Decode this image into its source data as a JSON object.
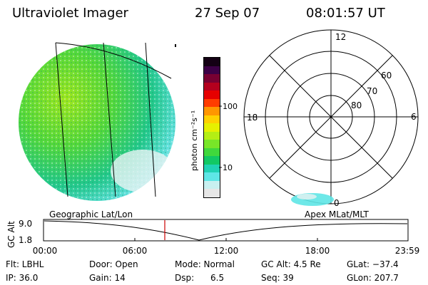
{
  "header": {
    "instrument": "Ultraviolet Imager",
    "date": "27 Sep 07",
    "time": "08:01:57 UT"
  },
  "colorbar": {
    "unit_label": "photon cm⁻²s⁻¹",
    "tick_100": "100",
    "tick_10": "10",
    "colors": [
      "#e6e6e6",
      "#c8f0f0",
      "#5ee6e6",
      "#20d2b4",
      "#12c864",
      "#40d83c",
      "#78e628",
      "#b4ee14",
      "#e6f000",
      "#ffd000",
      "#ff9600",
      "#ff3c00",
      "#e60000",
      "#b4001e",
      "#780032",
      "#3c0046",
      "#140014"
    ]
  },
  "polar_plot": {
    "mlt_12": "12",
    "mlt_18": "18",
    "mlt_6": "6",
    "mlt_0": "0",
    "lat_60": "60",
    "lat_70": "70",
    "lat_80": "80"
  },
  "orbit_panel": {
    "left_label": "Geographic Lat/Lon",
    "right_label": "Apex MLat/MLT",
    "yaxis_label": "GC Alt",
    "ytick_top": "9.0",
    "ytick_bottom": "1.8",
    "xticks": [
      "00:00",
      "06:00",
      "12:00",
      "18:00",
      "23:59"
    ],
    "current_time_marker_color": "#cc0000"
  },
  "status": {
    "flt": "Flt: LBHL",
    "ip": "IP: 36.0",
    "door": "Door: Open",
    "gain": "Gain: 14",
    "mode": "Mode: Normal",
    "dsp": "Dsp:      6.5",
    "gc_alt": "GC Alt: 4.5 Re",
    "seq": "Seq: 39",
    "glat": "GLat: −37.4",
    "glon": "GLon: 207.7"
  }
}
